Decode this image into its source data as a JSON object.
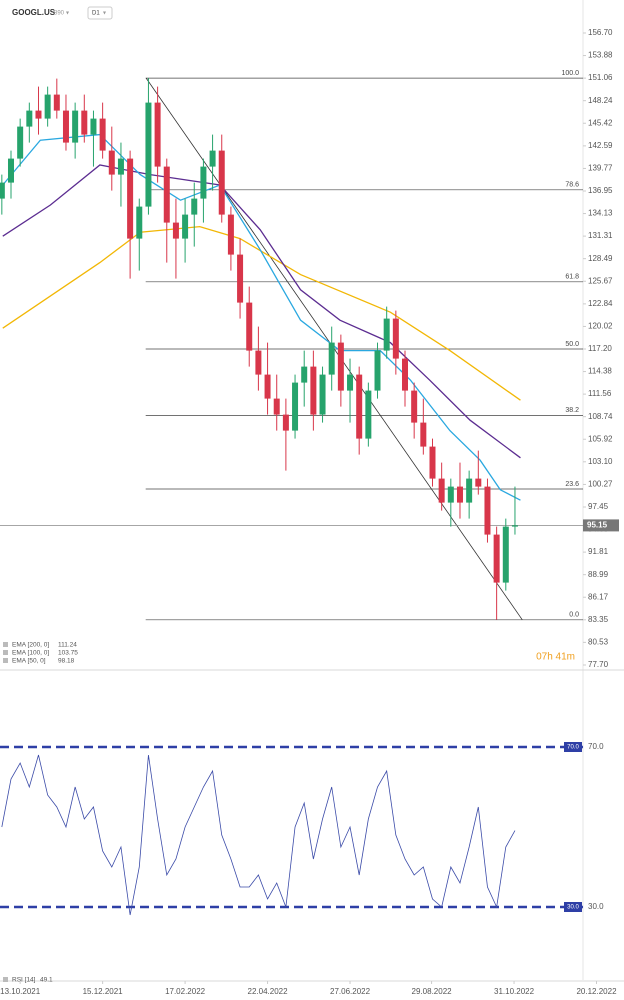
{
  "header": {
    "symbol": "GOOGL.US",
    "code": "890",
    "interval": "D1"
  },
  "countdown": "07h 41m",
  "chart_data": [
    {
      "type": "candlestick",
      "color_up": "#26a36c",
      "color_down": "#d8364a",
      "xlim": [
        -2.2,
        65.9
      ],
      "ylim": [
        77.7,
        156.7
      ],
      "yticks": [
        {
          "value": 156.7,
          "label": "156.70"
        },
        153.88,
        151.06,
        148.24,
        145.42,
        142.59,
        139.77,
        136.95,
        134.13,
        131.31,
        128.49,
        125.67,
        122.84,
        120.02,
        {
          "value": 117.2,
          "label": "117.20"
        },
        114.38,
        111.56,
        108.74,
        105.92,
        {
          "value": 103.1,
          "label": "103.10"
        },
        100.27,
        97.45,
        94.63,
        91.81,
        88.99,
        86.17,
        83.35,
        80.53,
        {
          "value": 77.7,
          "label": "77.70"
        }
      ],
      "x": [
        -2,
        -1,
        0,
        1,
        2,
        3,
        4,
        5,
        6,
        7,
        8,
        9,
        10,
        11,
        12,
        13,
        14,
        15,
        16,
        17,
        18,
        19,
        20,
        21,
        22,
        23,
        24,
        25,
        26,
        27,
        28,
        29,
        30,
        31,
        32,
        33,
        34,
        35,
        36,
        37,
        38,
        39,
        40,
        41,
        42,
        43,
        44,
        45,
        46,
        47,
        48,
        49,
        50,
        51,
        52,
        53,
        54
      ],
      "open": [
        136,
        138,
        141,
        145,
        147,
        146,
        149,
        147,
        143,
        147,
        144,
        146,
        142,
        139,
        141,
        131,
        135,
        148,
        140,
        133,
        131,
        134,
        136,
        140,
        142,
        134,
        129,
        123,
        117,
        114,
        111,
        109,
        107,
        113,
        115,
        109,
        114,
        118,
        112,
        114,
        106,
        112,
        117,
        121,
        116,
        112,
        108,
        105,
        101,
        98,
        100,
        98,
        101,
        100,
        94,
        88,
        95
      ],
      "high": [
        139,
        142,
        146,
        148,
        150,
        150,
        151,
        149,
        148,
        149,
        147,
        148,
        145,
        143,
        142,
        136,
        151.06,
        150,
        141,
        136,
        136,
        138,
        141,
        144,
        144,
        135,
        131,
        125,
        120,
        118,
        114,
        111,
        114,
        117,
        117,
        115,
        120,
        119,
        116,
        115,
        113,
        118,
        122.5,
        122,
        117,
        113,
        111,
        106,
        103,
        101,
        103,
        102,
        104.5,
        101,
        95,
        96,
        100
      ],
      "low": [
        134,
        136,
        140,
        143,
        144,
        145,
        146,
        142,
        141,
        143,
        140,
        141,
        137,
        135,
        126,
        127,
        134,
        138,
        128,
        126,
        128,
        130,
        133,
        137,
        133,
        127,
        121,
        115,
        112,
        109,
        107,
        102,
        106,
        110,
        107,
        108,
        112,
        110,
        108,
        104,
        105,
        111,
        116,
        114,
        110,
        106,
        104,
        100,
        97,
        95,
        96,
        96,
        99,
        93,
        83.35,
        87,
        94
      ],
      "close": [
        138,
        141,
        145,
        147,
        146,
        149,
        147,
        143,
        147,
        144,
        146,
        142,
        139,
        141,
        131,
        135,
        148,
        140,
        133,
        131,
        134,
        136,
        140,
        142,
        134,
        129,
        123,
        117,
        114,
        111,
        109,
        107,
        113,
        115,
        109,
        114,
        118,
        112,
        114,
        106,
        112,
        117,
        121,
        116,
        112,
        108,
        105,
        101,
        98,
        100,
        98,
        101,
        100,
        94,
        88,
        95,
        95.15
      ],
      "current_price": 95.15,
      "series": [
        {
          "name": "EMA [200, 0]",
          "value": 111.24,
          "color": "#f2b705",
          "x": [
            -1.9,
            8.7,
            13.1,
            19.6,
            24,
            30.6,
            40.4,
            46.9,
            54.6
          ],
          "values": [
            119.8,
            128,
            131.8,
            132.5,
            131,
            126.5,
            121.8,
            117,
            110.8
          ]
        },
        {
          "name": "EMA [100, 0]",
          "value": 103.75,
          "color": "#5c2d91",
          "x": [
            -1.9,
            3.3,
            8.7,
            14.2,
            21.8,
            26.2,
            30.6,
            34.9,
            40.4,
            44.7,
            49.1,
            54.6
          ],
          "values": [
            131.3,
            135.2,
            140.2,
            139,
            137.7,
            132.1,
            124.6,
            120.8,
            118,
            113.3,
            108.3,
            103.6
          ]
        },
        {
          "name": "EMA [50, 0]",
          "value": 98.18,
          "color": "#2aa8e0",
          "x": [
            -1.9,
            2.2,
            8.7,
            13.1,
            17.5,
            21.8,
            26.2,
            30.6,
            34.9,
            39.3,
            42.6,
            46.9,
            50.2,
            52.4,
            54.6
          ],
          "values": [
            137.7,
            143.3,
            144,
            139,
            135.8,
            137.7,
            129.6,
            120.8,
            117,
            117,
            113.3,
            107,
            103.3,
            99.6,
            98.3
          ]
        }
      ],
      "fib_start": 13.7,
      "fib_levels": [
        {
          "label": "100.0",
          "price": 151.06
        },
        {
          "label": "78.6",
          "price": 137.1
        },
        {
          "label": "61.8",
          "price": 125.6
        },
        {
          "label": "50.0",
          "price": 117.2
        },
        {
          "label": "38.2",
          "price": 108.9
        },
        {
          "label": "23.6",
          "price": 99.7
        },
        {
          "label": "0.0",
          "price": 83.35
        }
      ],
      "trendline": {
        "x": [
          13.75,
          54.8
        ],
        "y": [
          151.06,
          83.35
        ]
      }
    },
    {
      "type": "line",
      "name": "RSI [14]",
      "last": 49.1,
      "color": "#3b4ba8",
      "ylim": [
        13,
        88.75
      ],
      "levels": [
        {
          "value": 70,
          "label": "70.0"
        },
        {
          "value": 30,
          "label": "30.0"
        }
      ],
      "values": [
        50,
        62,
        66,
        60,
        68,
        58,
        55,
        50,
        60,
        52,
        55,
        44,
        40,
        45,
        28,
        40,
        68,
        52,
        38,
        42,
        50,
        55,
        60,
        64,
        48,
        42,
        35,
        35,
        38,
        32,
        36,
        30,
        50,
        56,
        42,
        52,
        60,
        45,
        50,
        38,
        52,
        60,
        64,
        48,
        42,
        38,
        40,
        32,
        30,
        40,
        36,
        45,
        55,
        35,
        30,
        45,
        49.1
      ],
      "xticks": [
        {
          "value": 0,
          "label": "13.10.2021"
        },
        {
          "value": 9,
          "label": "15.12.2021"
        },
        {
          "value": 18,
          "label": "17.02.2022"
        },
        {
          "value": 27,
          "label": "22.04.2022"
        },
        {
          "value": 36,
          "label": "27.06.2022"
        },
        {
          "value": 44.9,
          "label": "29.08.2022"
        },
        {
          "value": 53.9,
          "label": "31.10.2022"
        },
        {
          "value": 62.9,
          "label": "20.12.2022"
        }
      ]
    }
  ]
}
